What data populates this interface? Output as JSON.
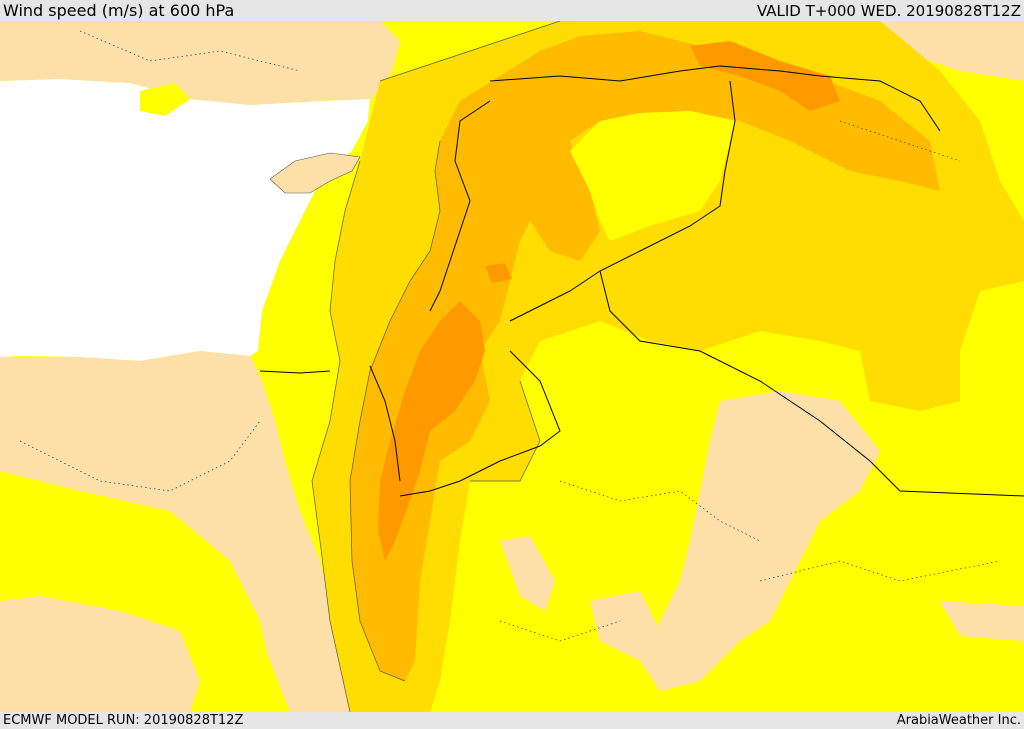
{
  "header": {
    "title": "Wind speed (m/s) at 600 hPa",
    "valid": "VALID T+000 WED. 20190828T12Z"
  },
  "footer": {
    "model_run": "ECMWF MODEL RUN: 20190828T12Z",
    "credit": "ArabiaWeather Inc."
  },
  "colors": {
    "sea": "#ffffff",
    "wind_band_1": "#fddfa8",
    "wind_band_2": "#ffff00",
    "wind_band_3": "#ffdd00",
    "wind_band_4": "#ffbb00",
    "wind_band_5": "#ff9900",
    "boundary": "#000000"
  }
}
